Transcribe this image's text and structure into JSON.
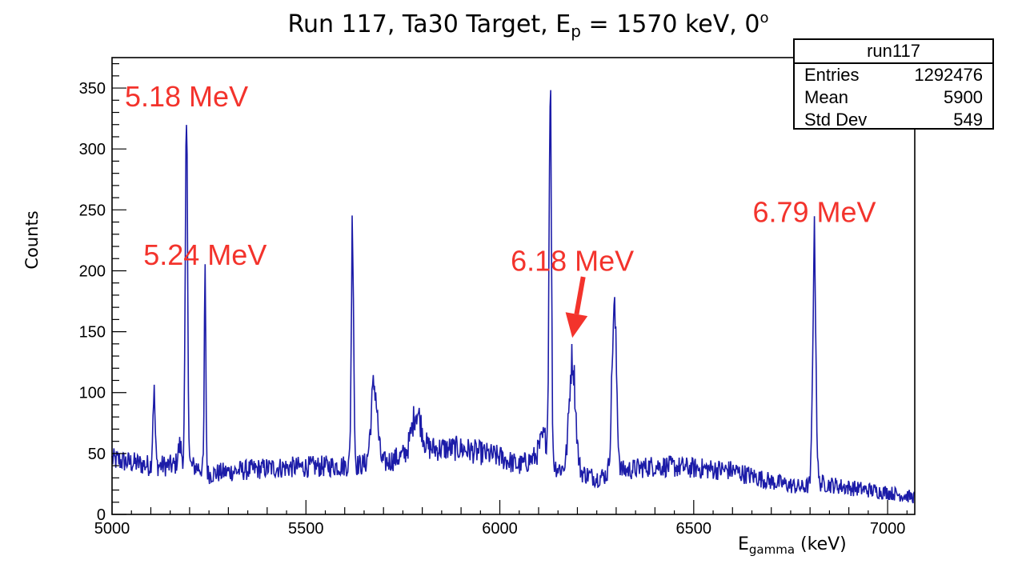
{
  "title": {
    "prefix": "Run 117, Ta30 Target, E",
    "sub": "p",
    "mid": " = 1570 keV, 0",
    "sup": "o"
  },
  "axes": {
    "ylabel": "Counts",
    "xlabel_main": "E",
    "xlabel_sub": "gamma",
    "xlabel_unit": " (keV)"
  },
  "stats": {
    "title": "run117",
    "rows": [
      {
        "label": "Entries",
        "value": "1292476"
      },
      {
        "label": "Mean",
        "value": "5900"
      },
      {
        "label": "Std Dev",
        "value": "549"
      }
    ]
  },
  "colors": {
    "line": "#1c1ca8",
    "annotation": "#f3332c"
  },
  "chart_data": {
    "type": "line",
    "xlim": [
      5000,
      7070
    ],
    "ylim": [
      0,
      375
    ],
    "xticks": [
      5000,
      5500,
      6000,
      6500,
      7000
    ],
    "yticks": [
      0,
      50,
      100,
      150,
      200,
      250,
      300,
      350
    ],
    "grid": false,
    "baseline": [
      [
        5000,
        45
      ],
      [
        5100,
        40
      ],
      [
        5180,
        40
      ],
      [
        5200,
        40
      ],
      [
        5230,
        38
      ],
      [
        5250,
        33
      ],
      [
        5300,
        35
      ],
      [
        5400,
        38
      ],
      [
        5500,
        39
      ],
      [
        5600,
        40
      ],
      [
        5700,
        42
      ],
      [
        5800,
        54
      ],
      [
        5900,
        54
      ],
      [
        6000,
        47
      ],
      [
        6050,
        40
      ],
      [
        6100,
        48
      ],
      [
        6150,
        38
      ],
      [
        6200,
        35
      ],
      [
        6250,
        30
      ],
      [
        6300,
        35
      ],
      [
        6400,
        40
      ],
      [
        6500,
        38
      ],
      [
        6600,
        36
      ],
      [
        6700,
        27
      ],
      [
        6780,
        22
      ],
      [
        6820,
        26
      ],
      [
        6900,
        22
      ],
      [
        7000,
        18
      ],
      [
        7070,
        14
      ]
    ],
    "peaks": [
      {
        "x": 5108,
        "height": 60,
        "width": 3
      },
      {
        "x": 5175,
        "height": 16,
        "width": 5
      },
      {
        "x": 5192,
        "height": 275,
        "width": 3
      },
      {
        "x": 5240,
        "height": 158,
        "width": 2
      },
      {
        "x": 5620,
        "height": 200,
        "width": 3
      },
      {
        "x": 5676,
        "height": 65,
        "width": 8
      },
      {
        "x": 5785,
        "height": 32,
        "width": 12
      },
      {
        "x": 6115,
        "height": 18,
        "width": 10
      },
      {
        "x": 6130,
        "height": 310,
        "width": 3
      },
      {
        "x": 6187,
        "height": 92,
        "width": 8
      },
      {
        "x": 6295,
        "height": 133,
        "width": 6
      },
      {
        "x": 6811,
        "height": 200,
        "width": 4
      }
    ],
    "annotations": [
      {
        "text": "5.18 MeV",
        "x": 5192,
        "y": 335
      },
      {
        "text": "5.24 MeV",
        "x": 5240,
        "y": 205
      },
      {
        "text": "6.18 MeV",
        "x": 6187,
        "y": 200
      },
      {
        "text": "6.79 MeV",
        "x": 6811,
        "y": 240
      }
    ],
    "arrow": {
      "from": [
        6215,
        195
      ],
      "to": [
        6187,
        145
      ]
    }
  }
}
